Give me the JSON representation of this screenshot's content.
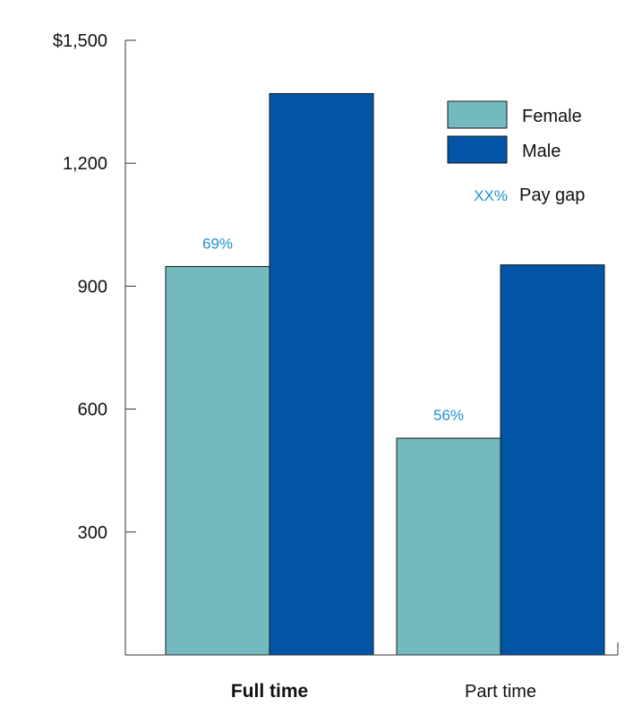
{
  "chart_data": {
    "type": "bar",
    "categories": [
      "Full time",
      "Part time"
    ],
    "series": [
      {
        "name": "Female",
        "values": [
          948,
          529
        ],
        "color": "#74b9bd"
      },
      {
        "name": "Male",
        "values": [
          1370,
          952
        ],
        "color": "#0254a6"
      }
    ],
    "pay_gap_labels": [
      "69%",
      "56%"
    ],
    "ylim": [
      0,
      1500
    ],
    "yticks": [
      300,
      600,
      900,
      1200,
      1500
    ],
    "ytick_labels": [
      "300",
      "600",
      "900",
      "1,200",
      "$1,500"
    ],
    "grid": false,
    "legend": {
      "placement": "top-right",
      "entries": [
        "Female",
        "Male"
      ],
      "pay_gap_marker": "XX%",
      "pay_gap_text": "Pay gap"
    },
    "bold_category": "Full time"
  }
}
